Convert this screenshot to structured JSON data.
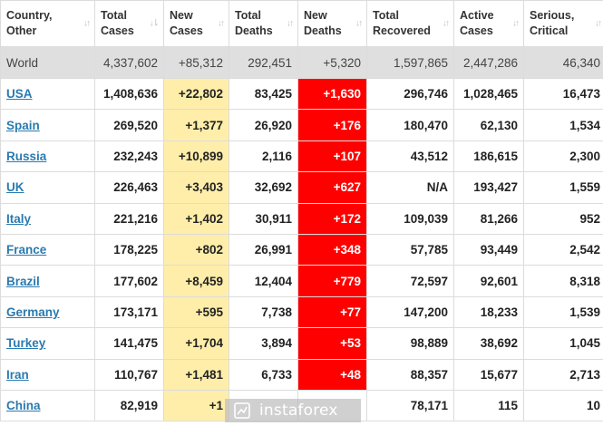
{
  "headers": [
    {
      "label": "Country,\nOther"
    },
    {
      "label": "Total\nCases"
    },
    {
      "label": "New\nCases"
    },
    {
      "label": "Total\nDeaths"
    },
    {
      "label": "New\nDeaths"
    },
    {
      "label": "Total\nRecovered"
    },
    {
      "label": "Active\nCases"
    },
    {
      "label": "Serious,\nCritical"
    }
  ],
  "world": {
    "country": "World",
    "total_cases": "4,337,602",
    "new_cases": "+85,312",
    "total_deaths": "292,451",
    "new_deaths": "+5,320",
    "total_recovered": "1,597,865",
    "active_cases": "2,447,286",
    "serious": "46,340"
  },
  "rows": [
    {
      "country": "USA",
      "total_cases": "1,408,636",
      "new_cases": "+22,802",
      "total_deaths": "83,425",
      "new_deaths": "+1,630",
      "total_recovered": "296,746",
      "active_cases": "1,028,465",
      "serious": "16,473"
    },
    {
      "country": "Spain",
      "total_cases": "269,520",
      "new_cases": "+1,377",
      "total_deaths": "26,920",
      "new_deaths": "+176",
      "total_recovered": "180,470",
      "active_cases": "62,130",
      "serious": "1,534"
    },
    {
      "country": "Russia",
      "total_cases": "232,243",
      "new_cases": "+10,899",
      "total_deaths": "2,116",
      "new_deaths": "+107",
      "total_recovered": "43,512",
      "active_cases": "186,615",
      "serious": "2,300"
    },
    {
      "country": "UK",
      "total_cases": "226,463",
      "new_cases": "+3,403",
      "total_deaths": "32,692",
      "new_deaths": "+627",
      "total_recovered": "N/A",
      "active_cases": "193,427",
      "serious": "1,559"
    },
    {
      "country": "Italy",
      "total_cases": "221,216",
      "new_cases": "+1,402",
      "total_deaths": "30,911",
      "new_deaths": "+172",
      "total_recovered": "109,039",
      "active_cases": "81,266",
      "serious": "952"
    },
    {
      "country": "France",
      "total_cases": "178,225",
      "new_cases": "+802",
      "total_deaths": "26,991",
      "new_deaths": "+348",
      "total_recovered": "57,785",
      "active_cases": "93,449",
      "serious": "2,542"
    },
    {
      "country": "Brazil",
      "total_cases": "177,602",
      "new_cases": "+8,459",
      "total_deaths": "12,404",
      "new_deaths": "+779",
      "total_recovered": "72,597",
      "active_cases": "92,601",
      "serious": "8,318"
    },
    {
      "country": "Germany",
      "total_cases": "173,171",
      "new_cases": "+595",
      "total_deaths": "7,738",
      "new_deaths": "+77",
      "total_recovered": "147,200",
      "active_cases": "18,233",
      "serious": "1,539"
    },
    {
      "country": "Turkey",
      "total_cases": "141,475",
      "new_cases": "+1,704",
      "total_deaths": "3,894",
      "new_deaths": "+53",
      "total_recovered": "98,889",
      "active_cases": "38,692",
      "serious": "1,045"
    },
    {
      "country": "Iran",
      "total_cases": "110,767",
      "new_cases": "+1,481",
      "total_deaths": "6,733",
      "new_deaths": "+48",
      "total_recovered": "88,357",
      "active_cases": "15,677",
      "serious": "2,713"
    },
    {
      "country": "China",
      "total_cases": "82,919",
      "new_cases": "+1",
      "total_deaths": "",
      "new_deaths": "",
      "total_recovered": "78,171",
      "active_cases": "115",
      "serious": "10"
    }
  ],
  "watermark": {
    "text": "instaforex",
    "icon": "instaforex-logo-icon"
  },
  "colors": {
    "new_cases_bg": "#ffeeaa",
    "new_deaths_bg": "#ff0000",
    "world_bg": "#dfdfdf",
    "link": "#2a7ab0"
  }
}
